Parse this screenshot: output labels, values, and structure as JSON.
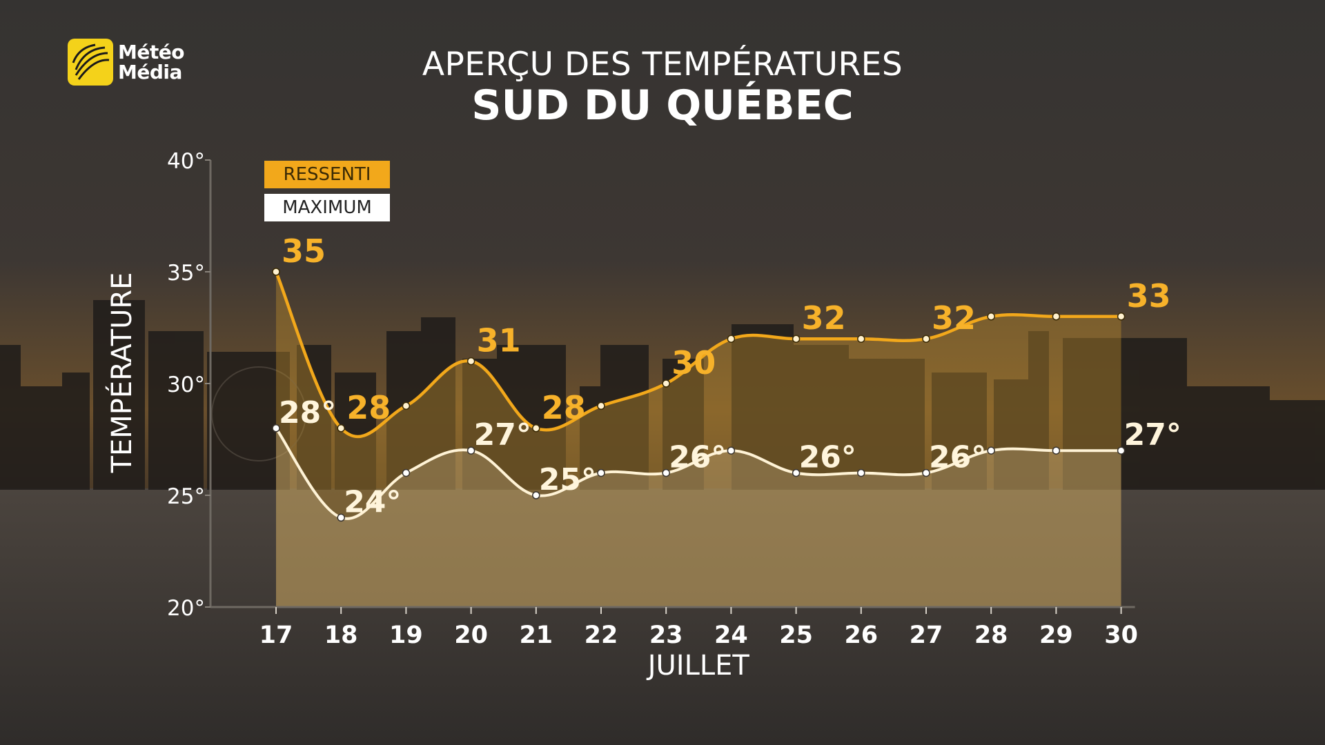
{
  "logo": {
    "line1": "Météo",
    "line2": "Média"
  },
  "title": "APERÇU DES TEMPÉRATURES",
  "subtitle": "SUD DU QUÉBEC",
  "legend": {
    "ressenti": "RESSENTI",
    "maximum": "MAXIMUM"
  },
  "colors": {
    "ressenti": "#f2a81b",
    "maximum": "#fff3d6",
    "label_ressenti": "#f7b22a",
    "label_maximum": "#fff5dc"
  },
  "chart_data": {
    "type": "line",
    "ylabel": "TEMPÉRATURE",
    "xlabel": "JUILLET",
    "ylim": [
      20,
      40
    ],
    "yticks": [
      "20°",
      "25°",
      "30°",
      "35°",
      "40°"
    ],
    "ytick_values": [
      20,
      25,
      30,
      35,
      40
    ],
    "categories": [
      "17",
      "18",
      "19",
      "20",
      "21",
      "22",
      "23",
      "24",
      "25",
      "26",
      "27",
      "28",
      "29",
      "30"
    ],
    "series": [
      {
        "name": "RESSENTI",
        "values": [
          35,
          28,
          29,
          31,
          28,
          29,
          30,
          32,
          32,
          32,
          32,
          33,
          33,
          33
        ]
      },
      {
        "name": "MAXIMUM",
        "values": [
          28,
          24,
          26,
          27,
          25,
          26,
          26,
          27,
          26,
          26,
          26,
          27,
          27,
          27
        ]
      }
    ],
    "data_labels": {
      "ressenti": [
        "35",
        "28",
        "",
        "31",
        "28",
        "",
        "30",
        "",
        "32",
        "",
        "32",
        "",
        "",
        "33"
      ],
      "maximum": [
        "28°",
        "24°",
        "",
        "27°",
        "25°",
        "",
        "26°",
        "",
        "26°",
        "",
        "26°",
        "",
        "",
        "27°"
      ]
    },
    "grid": false,
    "legend_position": "top-left"
  }
}
